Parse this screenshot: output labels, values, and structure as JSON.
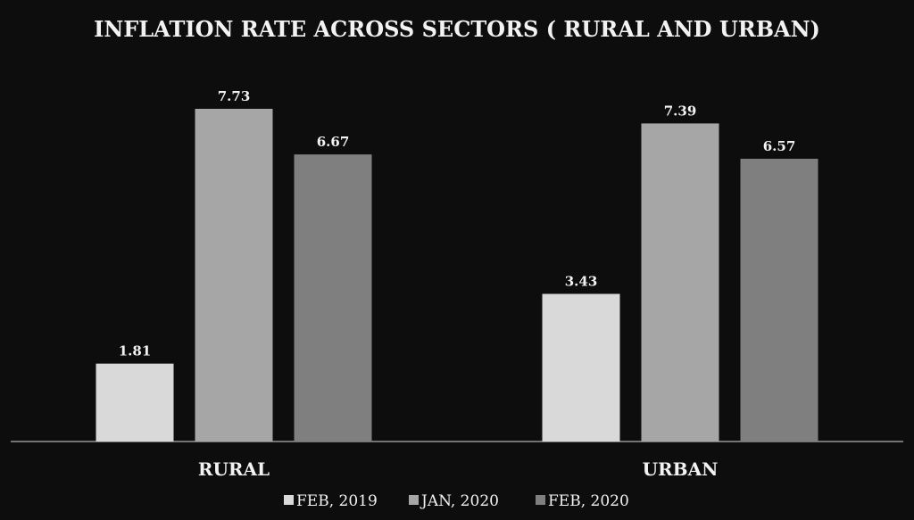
{
  "chart_data": {
    "type": "bar",
    "title": "INFLATION RATE ACROSS SECTORS ( RURAL AND URBAN)",
    "categories": [
      "RURAL",
      "URBAN"
    ],
    "series": [
      {
        "name": "FEB, 2019",
        "values": [
          1.81,
          3.43
        ],
        "color": "#d9d9d9"
      },
      {
        "name": "JAN, 2020",
        "values": [
          7.73,
          7.39
        ],
        "color": "#a6a6a6"
      },
      {
        "name": "FEB, 2020",
        "values": [
          6.67,
          6.57
        ],
        "color": "#7f7f7f"
      }
    ],
    "xlabel": "",
    "ylabel": "",
    "ylim": [
      0,
      7.73
    ],
    "grid": false,
    "legend": "bottom",
    "data_labels": true
  }
}
